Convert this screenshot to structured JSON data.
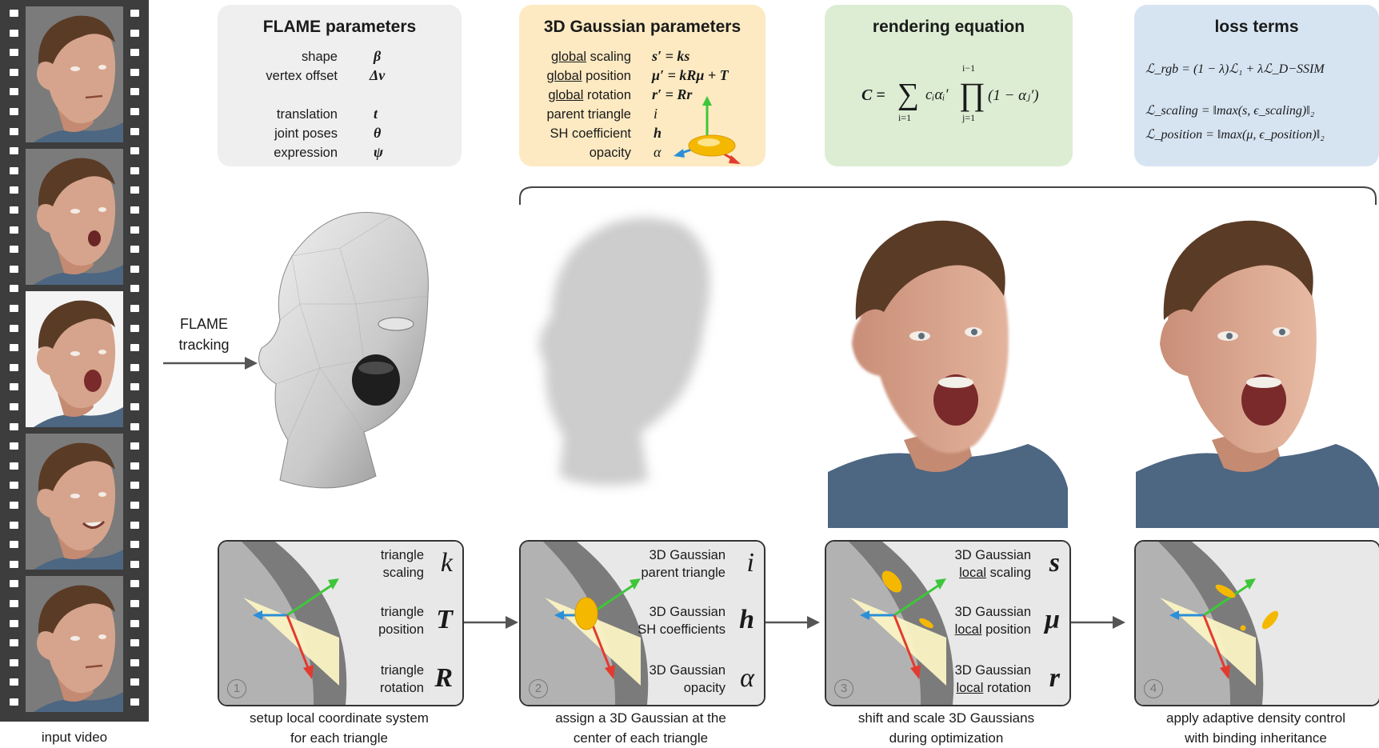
{
  "film": {
    "caption": "input video"
  },
  "tracking": {
    "line1": "FLAME",
    "line2": "tracking"
  },
  "flame_panel": {
    "title": "FLAME parameters",
    "rows": [
      {
        "label": "shape",
        "symbol": "β"
      },
      {
        "label": "vertex offset",
        "symbol": "Δv"
      },
      {
        "label": "translation",
        "symbol": "t"
      },
      {
        "label": "joint poses",
        "symbol": "θ"
      },
      {
        "label": "expression",
        "symbol": "ψ"
      }
    ]
  },
  "gauss_panel": {
    "title": "3D Gaussian parameters",
    "rows": [
      {
        "prefix": "global",
        "label": " scaling",
        "equation": "s′ = ks"
      },
      {
        "prefix": "global",
        "label": " position",
        "equation": "μ′ = kRμ + T"
      },
      {
        "prefix": "global",
        "label": " rotation",
        "equation": "r′ = Rr"
      },
      {
        "prefix": "",
        "label": "parent triangle",
        "equation": "i"
      },
      {
        "prefix": "",
        "label": "SH coefficient",
        "equation": "h"
      },
      {
        "prefix": "",
        "label": "opacity",
        "equation": "α"
      }
    ]
  },
  "render_panel": {
    "title": "rendering equation",
    "equation_lhs": "C =",
    "sum_top": "",
    "sum_bottom": "i=1",
    "sum_body": "cᵢαᵢ′",
    "prod_top": "i−1",
    "prod_bottom": "j=1",
    "prod_body": "(1 − αⱼ′)"
  },
  "loss_panel": {
    "title": "loss terms",
    "lines": [
      "ℒ_rgb = (1 − λ)ℒ₁ + λℒ_D−SSIM",
      "ℒ_scaling  = ‖max(s,  ϵ_scaling)‖₂",
      "ℒ_position = ‖max(μ,  ϵ_position)‖₂"
    ]
  },
  "steps": [
    {
      "num": "1",
      "items": [
        {
          "line1": "triangle",
          "line2": "scaling",
          "symbol": "k",
          "underline": false
        },
        {
          "line1": "triangle",
          "line2": "position",
          "symbol": "T",
          "underline": false
        },
        {
          "line1": "triangle",
          "line2": "rotation",
          "symbol": "R",
          "underline": false
        }
      ],
      "caption1": "setup local coordinate system",
      "caption2": "for each triangle"
    },
    {
      "num": "2",
      "items": [
        {
          "line1": "3D Gaussian",
          "line2": "parent triangle",
          "symbol": "i",
          "underline": false
        },
        {
          "line1": "3D Gaussian",
          "line2": "SH coefficients",
          "symbol": "h",
          "underline": false
        },
        {
          "line1": "3D Gaussian",
          "line2": "opacity",
          "symbol": "α",
          "underline": false
        }
      ],
      "caption1": "assign a 3D Gaussian at the",
      "caption2": "center of each triangle"
    },
    {
      "num": "3",
      "items": [
        {
          "line1": "3D Gaussian",
          "line2a": "local",
          "line2b": " scaling",
          "symbol": "s",
          "underline": true
        },
        {
          "line1": "3D Gaussian",
          "line2a": "local",
          "line2b": " position",
          "symbol": "μ",
          "underline": true
        },
        {
          "line1": "3D Gaussian",
          "line2a": "local",
          "line2b": " rotation",
          "symbol": "r",
          "underline": true
        }
      ],
      "caption1": "shift and scale 3D Gaussians",
      "caption2": "during optimization"
    },
    {
      "num": "4",
      "items": [],
      "caption1": "apply adaptive density control",
      "caption2": "with binding inheritance"
    }
  ],
  "colors": {
    "film": "#3d3d3d",
    "flame_panel": "#efefef",
    "gauss_panel": "#fdeac2",
    "render_panel": "#dcedd4",
    "loss_panel": "#d6e4f2",
    "axis_x": "#e23b2e",
    "axis_y": "#3ec63a",
    "axis_z": "#2a8fd8",
    "gaussian": "#f5b800",
    "triangle": "#fbf3c4"
  }
}
